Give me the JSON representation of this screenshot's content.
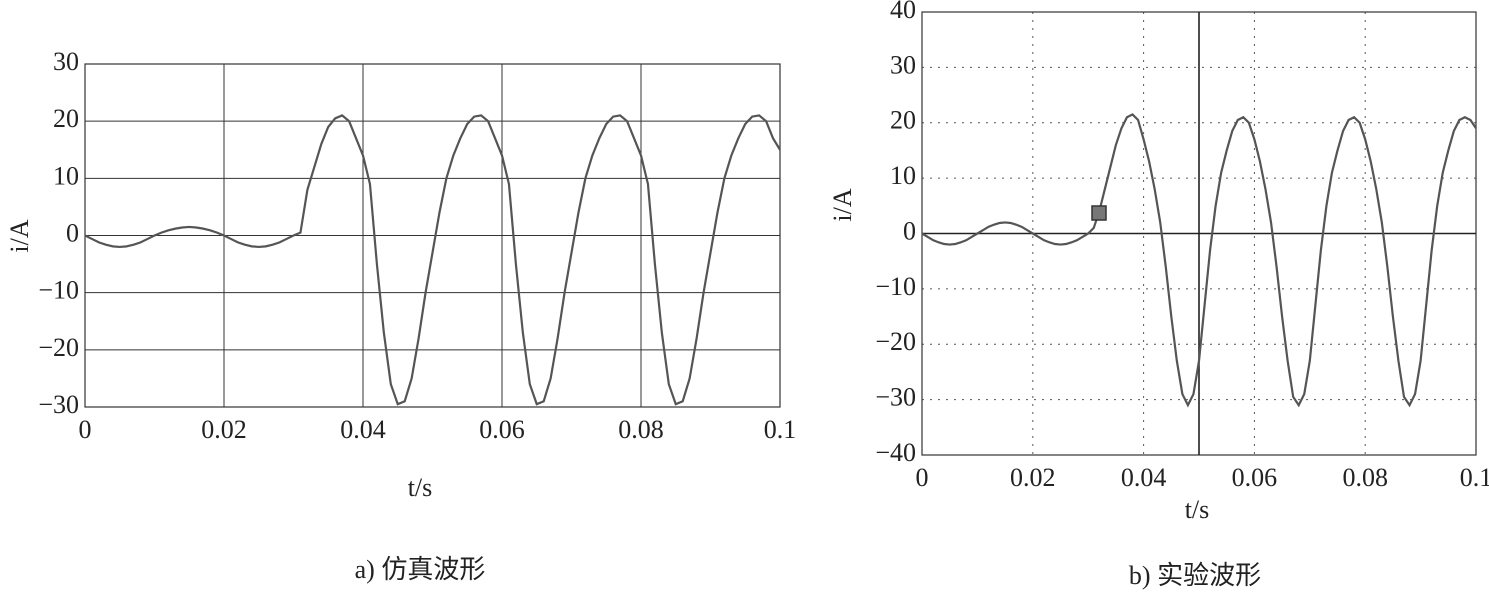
{
  "chart_data": [
    {
      "type": "line",
      "caption": "a) 仿真波形",
      "xlabel": "t/s",
      "ylabel": "i/A",
      "color": "#555555",
      "grid": "solid",
      "xlim": [
        0,
        0.1
      ],
      "xticks": [
        0,
        0.02,
        0.04,
        0.06,
        0.08,
        0.1
      ],
      "ylim": [
        -30,
        30
      ],
      "yticks": [
        {
          "value": -30,
          "label": "−30"
        },
        {
          "value": -20,
          "label": "−20"
        },
        {
          "value": -10,
          "label": "−10"
        },
        0,
        10,
        20,
        30
      ],
      "x": [
        0,
        0.001,
        0.002,
        0.003,
        0.004,
        0.005,
        0.006,
        0.007,
        0.008,
        0.009,
        0.01,
        0.011,
        0.012,
        0.013,
        0.014,
        0.015,
        0.016,
        0.017,
        0.018,
        0.019,
        0.02,
        0.021,
        0.022,
        0.023,
        0.024,
        0.025,
        0.026,
        0.027,
        0.028,
        0.029,
        0.03,
        0.031,
        0.032,
        0.033,
        0.034,
        0.035,
        0.036,
        0.037,
        0.038,
        0.039,
        0.04,
        0.041,
        0.042,
        0.043,
        0.044,
        0.045,
        0.046,
        0.047,
        0.048,
        0.049,
        0.05,
        0.051,
        0.052,
        0.053,
        0.054,
        0.055,
        0.056,
        0.057,
        0.058,
        0.059,
        0.06,
        0.061,
        0.062,
        0.063,
        0.064,
        0.065,
        0.066,
        0.067,
        0.068,
        0.069,
        0.07,
        0.071,
        0.072,
        0.073,
        0.074,
        0.075,
        0.076,
        0.077,
        0.078,
        0.079,
        0.08,
        0.081,
        0.082,
        0.083,
        0.084,
        0.085,
        0.086,
        0.087,
        0.088,
        0.089,
        0.09,
        0.091,
        0.092,
        0.093,
        0.094,
        0.095,
        0.096,
        0.097,
        0.098,
        0.099,
        0.1
      ],
      "values": [
        0,
        -0.6,
        -1.2,
        -1.6,
        -1.9,
        -2,
        -1.9,
        -1.6,
        -1.2,
        -0.6,
        0,
        0.5,
        0.9,
        1.2,
        1.4,
        1.5,
        1.4,
        1.2,
        0.9,
        0.5,
        0,
        -0.6,
        -1.2,
        -1.6,
        -1.9,
        -2,
        -1.9,
        -1.6,
        -1.2,
        -0.6,
        0,
        0.5,
        8,
        12,
        16,
        19,
        20.5,
        21,
        20,
        17,
        14,
        9,
        -5,
        -17,
        -26,
        -29.5,
        -29,
        -25,
        -18,
        -10,
        -3,
        4,
        10,
        14,
        17,
        19.5,
        20.8,
        21,
        20,
        17,
        14,
        9,
        -5,
        -17,
        -26,
        -29.5,
        -29,
        -25,
        -18,
        -10,
        -3,
        4,
        10,
        14,
        17,
        19.5,
        20.8,
        21,
        20,
        17,
        14,
        9,
        -5,
        -17,
        -26,
        -29.5,
        -29,
        -25,
        -18,
        -10,
        -3,
        4,
        10,
        14,
        17,
        19.5,
        20.8,
        21,
        20,
        17,
        15
      ]
    },
    {
      "type": "line",
      "caption": "b) 实验波形",
      "xlabel": "t/s",
      "ylabel": "i/A",
      "color": "#555555",
      "grid": "dotted",
      "xlim": [
        0,
        0.1
      ],
      "xticks": [
        0,
        0.02,
        0.04,
        0.06,
        0.08,
        0.1
      ],
      "ylim": [
        -40,
        40
      ],
      "yticks": [
        {
          "value": -40,
          "label": "−40"
        },
        {
          "value": -30,
          "label": "−30"
        },
        {
          "value": -20,
          "label": "−20"
        },
        {
          "value": -10,
          "label": "−10"
        },
        0,
        10,
        20,
        30,
        40
      ],
      "x": [
        0,
        0.001,
        0.002,
        0.003,
        0.004,
        0.005,
        0.006,
        0.007,
        0.008,
        0.009,
        0.01,
        0.011,
        0.012,
        0.013,
        0.014,
        0.015,
        0.016,
        0.017,
        0.018,
        0.019,
        0.02,
        0.021,
        0.022,
        0.023,
        0.024,
        0.025,
        0.026,
        0.027,
        0.028,
        0.029,
        0.03,
        0.031,
        0.032,
        0.033,
        0.034,
        0.035,
        0.036,
        0.037,
        0.038,
        0.039,
        0.04,
        0.041,
        0.042,
        0.043,
        0.044,
        0.045,
        0.046,
        0.047,
        0.048,
        0.049,
        0.05,
        0.051,
        0.052,
        0.053,
        0.054,
        0.055,
        0.056,
        0.057,
        0.058,
        0.059,
        0.06,
        0.061,
        0.062,
        0.063,
        0.064,
        0.065,
        0.066,
        0.067,
        0.068,
        0.069,
        0.07,
        0.071,
        0.072,
        0.073,
        0.074,
        0.075,
        0.076,
        0.077,
        0.078,
        0.079,
        0.08,
        0.081,
        0.082,
        0.083,
        0.084,
        0.085,
        0.086,
        0.087,
        0.088,
        0.089,
        0.09,
        0.091,
        0.092,
        0.093,
        0.094,
        0.095,
        0.096,
        0.097,
        0.098,
        0.099,
        0.1
      ],
      "values": [
        0,
        -0.6,
        -1.2,
        -1.6,
        -1.9,
        -2,
        -1.9,
        -1.6,
        -1.2,
        -0.6,
        0,
        0.6,
        1.2,
        1.6,
        1.9,
        2,
        1.9,
        1.6,
        1.2,
        0.6,
        0,
        -0.6,
        -1.2,
        -1.6,
        -1.9,
        -2,
        -1.9,
        -1.6,
        -1.2,
        -0.6,
        0,
        1,
        4,
        8,
        12,
        16,
        19,
        21,
        21.5,
        20.5,
        17,
        13,
        8,
        2,
        -6,
        -15,
        -23,
        -29,
        -31,
        -29,
        -23,
        -13,
        -3,
        5,
        11,
        15,
        18.5,
        20.5,
        21,
        20,
        17,
        13,
        8,
        2,
        -6,
        -15,
        -23,
        -29.5,
        -31,
        -29,
        -23,
        -13,
        -3,
        5,
        11,
        15,
        18.5,
        20.5,
        21,
        20,
        17,
        13,
        8,
        2,
        -6,
        -15,
        -23,
        -29.5,
        -31,
        -29,
        -23,
        -13,
        -3,
        5,
        11,
        15,
        18.5,
        20.5,
        21,
        20.5,
        19
      ]
    }
  ]
}
